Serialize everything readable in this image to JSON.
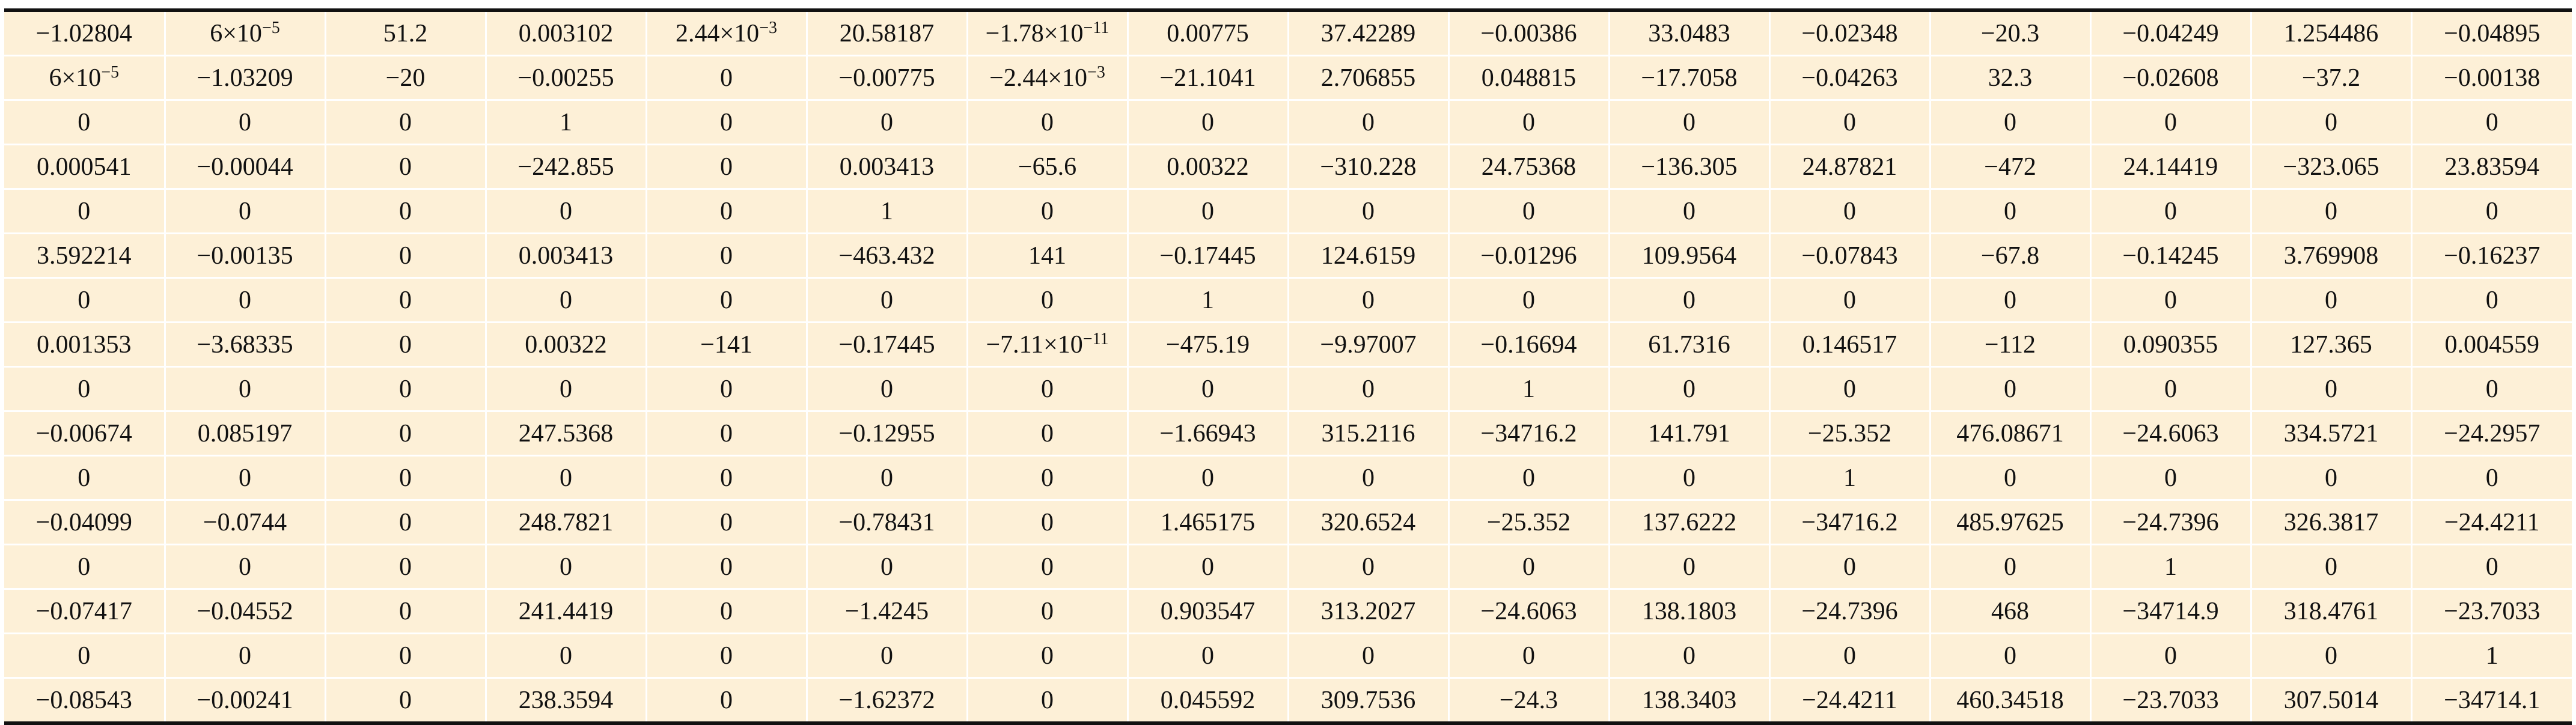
{
  "matrix": {
    "rows": [
      [
        "−1.02804",
        "6×10^−5",
        "51.2",
        "0.003102",
        "2.44×10^−3",
        "20.58187",
        "−1.78×10^−11",
        "0.00775",
        "37.42289",
        "−0.00386",
        "33.0483",
        "−0.02348",
        "−20.3",
        "−0.04249",
        "1.254486",
        "−0.04895"
      ],
      [
        "6×10^−5",
        "−1.03209",
        "−20",
        "−0.00255",
        "0",
        "−0.00775",
        "−2.44×10^−3",
        "−21.1041",
        "2.706855",
        "0.048815",
        "−17.7058",
        "−0.04263",
        "32.3",
        "−0.02608",
        "−37.2",
        "−0.00138"
      ],
      [
        "0",
        "0",
        "0",
        "1",
        "0",
        "0",
        "0",
        "0",
        "0",
        "0",
        "0",
        "0",
        "0",
        "0",
        "0",
        "0"
      ],
      [
        "0.000541",
        "−0.00044",
        "0",
        "−242.855",
        "0",
        "0.003413",
        "−65.6",
        "0.00322",
        "−310.228",
        "24.75368",
        "−136.305",
        "24.87821",
        "−472",
        "24.14419",
        "−323.065",
        "23.83594"
      ],
      [
        "0",
        "0",
        "0",
        "0",
        "0",
        "1",
        "0",
        "0",
        "0",
        "0",
        "0",
        "0",
        "0",
        "0",
        "0",
        "0"
      ],
      [
        "3.592214",
        "−0.00135",
        "0",
        "0.003413",
        "0",
        "−463.432",
        "141",
        "−0.17445",
        "124.6159",
        "−0.01296",
        "109.9564",
        "−0.07843",
        "−67.8",
        "−0.14245",
        "3.769908",
        "−0.16237"
      ],
      [
        "0",
        "0",
        "0",
        "0",
        "0",
        "0",
        "0",
        "1",
        "0",
        "0",
        "0",
        "0",
        "0",
        "0",
        "0",
        "0"
      ],
      [
        "0.001353",
        "−3.68335",
        "0",
        "0.00322",
        "−141",
        "−0.17445",
        "−7.11×10^−11",
        "−475.19",
        "−9.97007",
        "−0.16694",
        "61.7316",
        "0.146517",
        "−112",
        "0.090355",
        "127.365",
        "0.004559"
      ],
      [
        "0",
        "0",
        "0",
        "0",
        "0",
        "0",
        "0",
        "0",
        "0",
        "1",
        "0",
        "0",
        "0",
        "0",
        "0",
        "0"
      ],
      [
        "−0.00674",
        "0.085197",
        "0",
        "247.5368",
        "0",
        "−0.12955",
        "0",
        "−1.66943",
        "315.2116",
        "−34716.2",
        "141.791",
        "−25.352",
        "476.08671",
        "−24.6063",
        "334.5721",
        "−24.2957"
      ],
      [
        "0",
        "0",
        "0",
        "0",
        "0",
        "0",
        "0",
        "0",
        "0",
        "0",
        "0",
        "1",
        "0",
        "0",
        "0",
        "0"
      ],
      [
        "−0.04099",
        "−0.0744",
        "0",
        "248.7821",
        "0",
        "−0.78431",
        "0",
        "1.465175",
        "320.6524",
        "−25.352",
        "137.6222",
        "−34716.2",
        "485.97625",
        "−24.7396",
        "326.3817",
        "−24.4211"
      ],
      [
        "0",
        "0",
        "0",
        "0",
        "0",
        "0",
        "0",
        "0",
        "0",
        "0",
        "0",
        "0",
        "0",
        "1",
        "0",
        "0"
      ],
      [
        "−0.07417",
        "−0.04552",
        "0",
        "241.4419",
        "0",
        "−1.4245",
        "0",
        "0.903547",
        "313.2027",
        "−24.6063",
        "138.1803",
        "−24.7396",
        "468",
        "−34714.9",
        "318.4761",
        "−23.7033"
      ],
      [
        "0",
        "0",
        "0",
        "0",
        "0",
        "0",
        "0",
        "0",
        "0",
        "0",
        "0",
        "0",
        "0",
        "0",
        "0",
        "1"
      ],
      [
        "−0.08543",
        "−0.00241",
        "0",
        "238.3594",
        "0",
        "−1.62372",
        "0",
        "0.045592",
        "309.7536",
        "−24.3",
        "138.3403",
        "−24.4211",
        "460.34518",
        "−23.7033",
        "307.5014",
        "−34714.1"
      ]
    ]
  }
}
